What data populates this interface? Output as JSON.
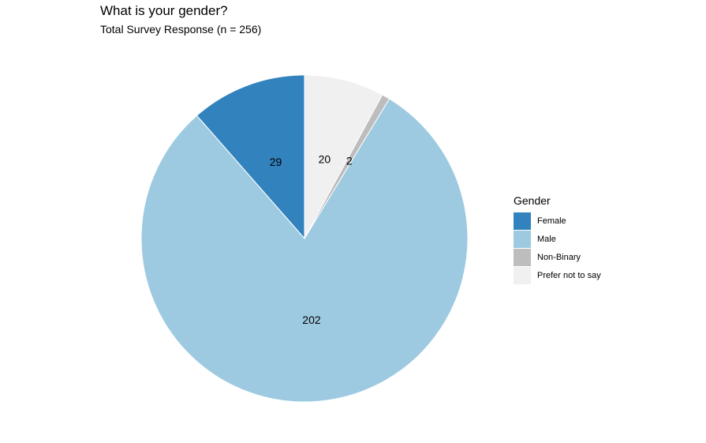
{
  "chart_data": {
    "type": "pie",
    "title": "What is your gender?",
    "subtitle": "Total Survey Response (n = 256)",
    "legend_title": "Gender",
    "legend_position": "right",
    "start": "top",
    "direction": "counterclockwise",
    "slices": [
      {
        "label": "Female",
        "value": 29,
        "color": "#3182bd"
      },
      {
        "label": "Male",
        "value": 202,
        "color": "#9ecae1"
      },
      {
        "label": "Non-Binary",
        "value": 2,
        "color": "#bdbdbd"
      },
      {
        "label": "Prefer not to say",
        "value": 20,
        "color": "#f0f0f0"
      }
    ]
  }
}
